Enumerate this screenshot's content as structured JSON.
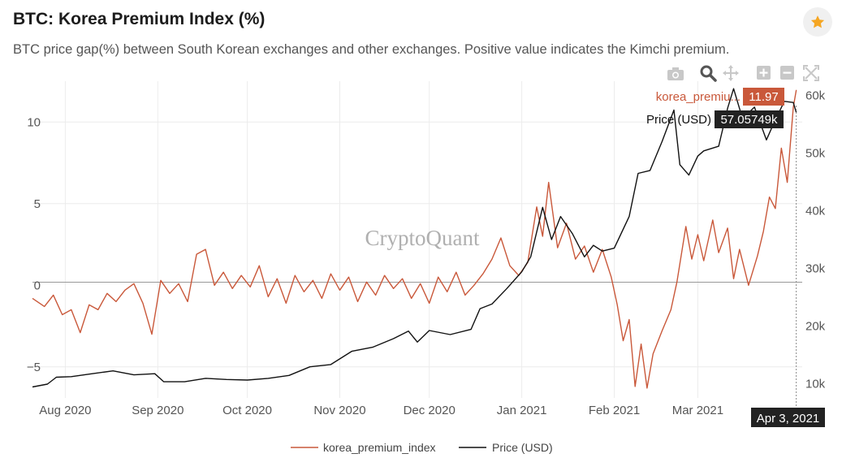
{
  "header": {
    "title": "BTC: Korea Premium Index (%)",
    "subtitle": "BTC price gap(%) between South Korean exchanges and other exchanges. Positive value indicates the Kimchi premium."
  },
  "watermark": "CryptoQuant",
  "toolbar": {
    "icons": [
      "camera-icon",
      "zoom-icon",
      "pan-icon",
      "zoom-in-icon",
      "zoom-out-icon",
      "autoscale-icon"
    ],
    "active": "zoom-icon"
  },
  "colors": {
    "premium": "#c9583a",
    "price": "#111111",
    "star": "#f5a623"
  },
  "hover": {
    "premium_label": "korea_premiu...",
    "premium_value": "11.97",
    "price_label": "Price (USD)",
    "price_value": "57.05749k",
    "date_label": "Apr 3, 2021"
  },
  "chart_data": {
    "type": "line",
    "x_range": [
      "2020-07-21",
      "2021-04-05"
    ],
    "x_ticks": [
      {
        "date": "2020-08-01",
        "label": "Aug 2020"
      },
      {
        "date": "2020-09-01",
        "label": "Sep 2020"
      },
      {
        "date": "2020-10-01",
        "label": "Oct 2020"
      },
      {
        "date": "2020-11-01",
        "label": "Nov 2020"
      },
      {
        "date": "2020-12-01",
        "label": "Dec 2020"
      },
      {
        "date": "2021-01-01",
        "label": "Jan 2021"
      },
      {
        "date": "2021-02-01",
        "label": "Feb 2021"
      },
      {
        "date": "2021-03-01",
        "label": "Mar 2021"
      }
    ],
    "y_left": {
      "range": [
        -6.9,
        12.5
      ],
      "ticks": [
        {
          "v": 10,
          "label": "10"
        },
        {
          "v": 5,
          "label": "5"
        },
        {
          "v": 0,
          "label": "0"
        },
        {
          "v": -5,
          "label": "−5"
        }
      ]
    },
    "y_right": {
      "range": [
        7500,
        62500
      ],
      "ticks": [
        {
          "v": 10000,
          "label": "10k"
        },
        {
          "v": 20000,
          "label": "20k"
        },
        {
          "v": 30000,
          "label": "30k"
        },
        {
          "v": 40000,
          "label": "40k"
        },
        {
          "v": 50000,
          "label": "50k"
        },
        {
          "v": 60000,
          "label": "60k"
        }
      ]
    },
    "grid": true,
    "legend_position": "bottom-center",
    "series": [
      {
        "name": "korea_premium_index",
        "axis": "left",
        "points": [
          [
            "2020-07-21",
            -0.8
          ],
          [
            "2020-07-25",
            -1.3
          ],
          [
            "2020-07-28",
            -0.6
          ],
          [
            "2020-07-31",
            -1.8
          ],
          [
            "2020-08-03",
            -1.5
          ],
          [
            "2020-08-06",
            -2.9
          ],
          [
            "2020-08-09",
            -1.2
          ],
          [
            "2020-08-12",
            -1.5
          ],
          [
            "2020-08-15",
            -0.5
          ],
          [
            "2020-08-18",
            -1.0
          ],
          [
            "2020-08-21",
            -0.3
          ],
          [
            "2020-08-24",
            0.1
          ],
          [
            "2020-08-27",
            -1.1
          ],
          [
            "2020-08-30",
            -3.0
          ],
          [
            "2020-09-02",
            0.3
          ],
          [
            "2020-09-05",
            -0.5
          ],
          [
            "2020-09-08",
            0.1
          ],
          [
            "2020-09-11",
            -1.0
          ],
          [
            "2020-09-14",
            1.9
          ],
          [
            "2020-09-17",
            2.2
          ],
          [
            "2020-09-20",
            0.0
          ],
          [
            "2020-09-23",
            0.8
          ],
          [
            "2020-09-26",
            -0.2
          ],
          [
            "2020-09-29",
            0.6
          ],
          [
            "2020-10-02",
            -0.1
          ],
          [
            "2020-10-05",
            1.2
          ],
          [
            "2020-10-08",
            -0.7
          ],
          [
            "2020-10-11",
            0.4
          ],
          [
            "2020-10-14",
            -1.1
          ],
          [
            "2020-10-17",
            0.6
          ],
          [
            "2020-10-20",
            -0.4
          ],
          [
            "2020-10-23",
            0.3
          ],
          [
            "2020-10-26",
            -0.8
          ],
          [
            "2020-10-29",
            0.7
          ],
          [
            "2020-11-01",
            -0.3
          ],
          [
            "2020-11-04",
            0.5
          ],
          [
            "2020-11-07",
            -1.0
          ],
          [
            "2020-11-10",
            0.2
          ],
          [
            "2020-11-13",
            -0.6
          ],
          [
            "2020-11-16",
            0.6
          ],
          [
            "2020-11-19",
            -0.2
          ],
          [
            "2020-11-22",
            0.4
          ],
          [
            "2020-11-25",
            -0.8
          ],
          [
            "2020-11-28",
            0.1
          ],
          [
            "2020-12-01",
            -1.1
          ],
          [
            "2020-12-04",
            0.5
          ],
          [
            "2020-12-07",
            -0.4
          ],
          [
            "2020-12-10",
            0.8
          ],
          [
            "2020-12-13",
            -0.6
          ],
          [
            "2020-12-16",
            0.0
          ],
          [
            "2020-12-19",
            0.7
          ],
          [
            "2020-12-22",
            1.6
          ],
          [
            "2020-12-25",
            2.9
          ],
          [
            "2020-12-28",
            1.2
          ],
          [
            "2020-12-31",
            0.6
          ],
          [
            "2021-01-03",
            1.4
          ],
          [
            "2021-01-06",
            4.8
          ],
          [
            "2021-01-08",
            3.0
          ],
          [
            "2021-01-10",
            6.3
          ],
          [
            "2021-01-13",
            2.3
          ],
          [
            "2021-01-16",
            3.8
          ],
          [
            "2021-01-19",
            1.6
          ],
          [
            "2021-01-22",
            2.4
          ],
          [
            "2021-01-25",
            0.8
          ],
          [
            "2021-01-28",
            2.2
          ],
          [
            "2021-01-31",
            0.5
          ],
          [
            "2021-02-02",
            -1.2
          ],
          [
            "2021-02-04",
            -3.4
          ],
          [
            "2021-02-06",
            -2.1
          ],
          [
            "2021-02-08",
            -6.2
          ],
          [
            "2021-02-10",
            -3.6
          ],
          [
            "2021-02-12",
            -6.3
          ],
          [
            "2021-02-14",
            -4.2
          ],
          [
            "2021-02-17",
            -2.8
          ],
          [
            "2021-02-20",
            -1.5
          ],
          [
            "2021-02-22",
            0.2
          ],
          [
            "2021-02-25",
            3.6
          ],
          [
            "2021-02-27",
            1.6
          ],
          [
            "2021-03-01",
            3.1
          ],
          [
            "2021-03-03",
            1.5
          ],
          [
            "2021-03-06",
            4.0
          ],
          [
            "2021-03-08",
            2.0
          ],
          [
            "2021-03-11",
            3.5
          ],
          [
            "2021-03-13",
            0.4
          ],
          [
            "2021-03-15",
            2.2
          ],
          [
            "2021-03-18",
            0.0
          ],
          [
            "2021-03-21",
            1.8
          ],
          [
            "2021-03-23",
            3.3
          ],
          [
            "2021-03-25",
            5.4
          ],
          [
            "2021-03-27",
            4.7
          ],
          [
            "2021-03-29",
            8.4
          ],
          [
            "2021-03-31",
            6.3
          ],
          [
            "2021-04-02",
            10.9
          ],
          [
            "2021-04-03",
            11.97
          ]
        ]
      },
      {
        "name": "Price (USD)",
        "axis": "right",
        "points": [
          [
            "2020-07-21",
            9400
          ],
          [
            "2020-07-26",
            9900
          ],
          [
            "2020-07-29",
            11100
          ],
          [
            "2020-08-03",
            11200
          ],
          [
            "2020-08-10",
            11700
          ],
          [
            "2020-08-17",
            12200
          ],
          [
            "2020-08-24",
            11500
          ],
          [
            "2020-08-31",
            11700
          ],
          [
            "2020-09-03",
            10300
          ],
          [
            "2020-09-10",
            10300
          ],
          [
            "2020-09-17",
            10900
          ],
          [
            "2020-09-24",
            10700
          ],
          [
            "2020-10-01",
            10600
          ],
          [
            "2020-10-08",
            10900
          ],
          [
            "2020-10-15",
            11400
          ],
          [
            "2020-10-22",
            12900
          ],
          [
            "2020-10-29",
            13300
          ],
          [
            "2020-11-05",
            15600
          ],
          [
            "2020-11-12",
            16300
          ],
          [
            "2020-11-19",
            17800
          ],
          [
            "2020-11-24",
            19100
          ],
          [
            "2020-11-27",
            17200
          ],
          [
            "2020-12-01",
            19200
          ],
          [
            "2020-12-08",
            18500
          ],
          [
            "2020-12-15",
            19400
          ],
          [
            "2020-12-18",
            23000
          ],
          [
            "2020-12-22",
            23800
          ],
          [
            "2020-12-27",
            26500
          ],
          [
            "2021-01-01",
            29400
          ],
          [
            "2021-01-04",
            32000
          ],
          [
            "2021-01-08",
            40600
          ],
          [
            "2021-01-11",
            35000
          ],
          [
            "2021-01-14",
            39000
          ],
          [
            "2021-01-18",
            36000
          ],
          [
            "2021-01-22",
            32000
          ],
          [
            "2021-01-25",
            34000
          ],
          [
            "2021-01-28",
            33000
          ],
          [
            "2021-02-01",
            33500
          ],
          [
            "2021-02-06",
            39000
          ],
          [
            "2021-02-09",
            46500
          ],
          [
            "2021-02-13",
            47000
          ],
          [
            "2021-02-17",
            52000
          ],
          [
            "2021-02-21",
            57500
          ],
          [
            "2021-02-23",
            48000
          ],
          [
            "2021-02-26",
            46200
          ],
          [
            "2021-03-01",
            49500
          ],
          [
            "2021-03-03",
            50400
          ],
          [
            "2021-03-08",
            51200
          ],
          [
            "2021-03-11",
            57800
          ],
          [
            "2021-03-13",
            61200
          ],
          [
            "2021-03-16",
            56000
          ],
          [
            "2021-03-20",
            58000
          ],
          [
            "2021-03-24",
            52300
          ],
          [
            "2021-03-27",
            55800
          ],
          [
            "2021-03-30",
            59000
          ],
          [
            "2021-04-02",
            58800
          ],
          [
            "2021-04-03",
            57057
          ]
        ]
      }
    ]
  }
}
